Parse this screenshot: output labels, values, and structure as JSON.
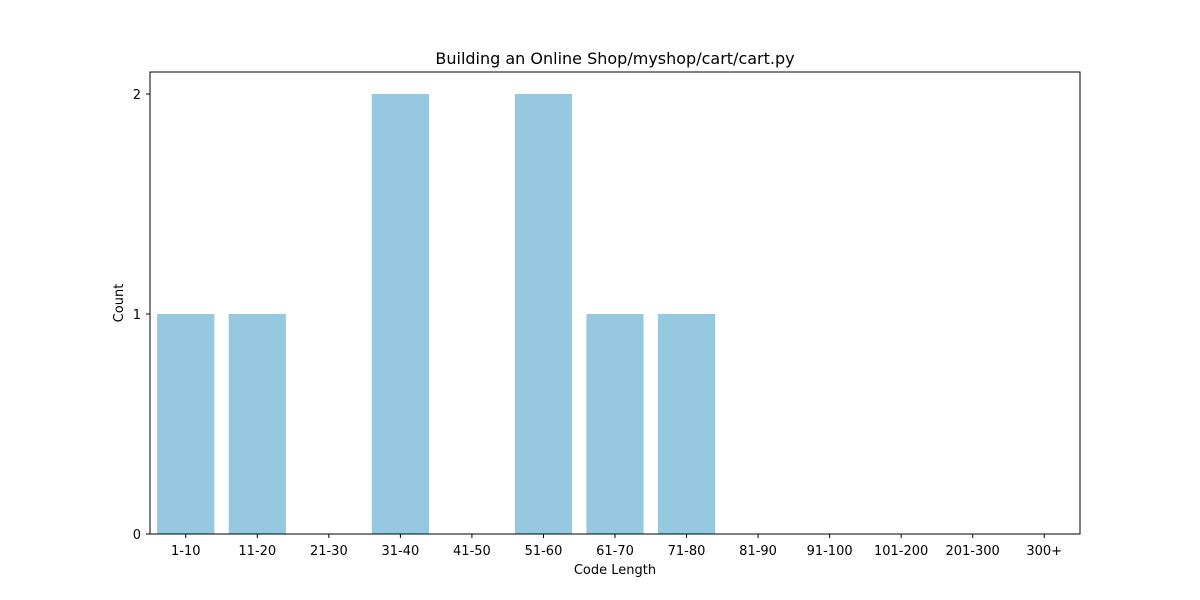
{
  "chart_data": {
    "type": "bar",
    "title": "Building an Online Shop/myshop/cart/cart.py",
    "xlabel": "Code Length",
    "ylabel": "Count",
    "categories": [
      "1-10",
      "11-20",
      "21-30",
      "31-40",
      "41-50",
      "51-60",
      "61-70",
      "71-80",
      "81-90",
      "91-100",
      "101-200",
      "201-300",
      "300+"
    ],
    "values": [
      1,
      1,
      0,
      2,
      0,
      2,
      1,
      1,
      0,
      0,
      0,
      0,
      0
    ],
    "ylim": [
      0,
      2.1
    ],
    "yticks": [
      0,
      1,
      2
    ],
    "bar_color": "#96c9df",
    "grid": false
  }
}
